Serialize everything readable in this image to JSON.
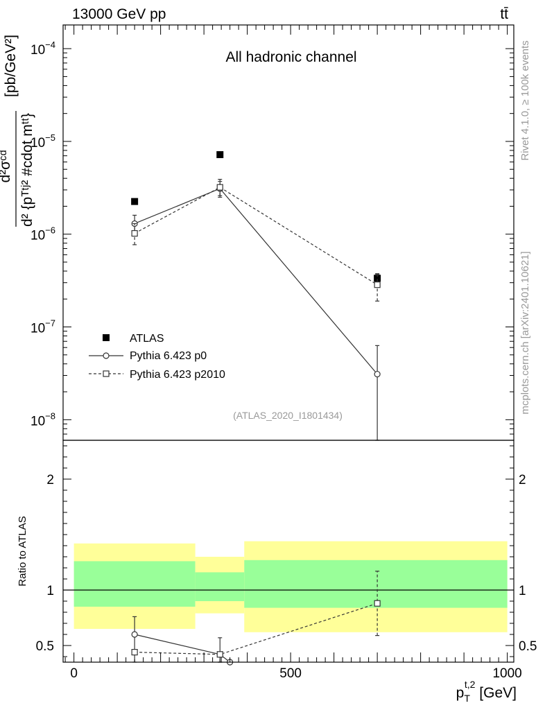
{
  "header": {
    "left": "13000 GeV pp",
    "right": "tt̄",
    "rivet": "Rivet 4.1.0, ≥ 100k events",
    "mcplots": "mcplots.cern.ch [arXiv:2401.10621]"
  },
  "chart_data": [
    {
      "type": "scatter",
      "panel": "main",
      "title": "All hadronic channel",
      "analysis": "(ATLAS_2020_I1801434)",
      "ylabel_num": "d²σᶜᵈ",
      "ylabel_den": "d² {pᵀᵗʲ² #cdot mᵗᵗ}",
      "ylabel_unit": "[pb/GeV²]",
      "yscale": "log",
      "ylim": [
        6e-09,
        0.00018
      ],
      "yticks": [
        {
          "value": 1e-08,
          "mant": "10",
          "exp": "−8"
        },
        {
          "value": 1e-07,
          "mant": "10",
          "exp": "−7"
        },
        {
          "value": 1e-06,
          "mant": "10",
          "exp": "−6"
        },
        {
          "value": 1e-05,
          "mant": "10",
          "exp": "−5"
        },
        {
          "value": 0.0001,
          "mant": "10",
          "exp": "−4"
        }
      ],
      "xlim": [
        -25,
        1015
      ],
      "series": [
        {
          "name": "ATLAS",
          "style": "filled-square",
          "x": [
            140,
            337,
            700
          ],
          "y": [
            2.25e-06,
            7.2e-06,
            3.35e-07
          ],
          "yerr_lo": [
            null,
            null,
            3e-07
          ],
          "yerr_hi": [
            null,
            null,
            3.75e-07
          ]
        },
        {
          "name": "Pythia 6.423 p0",
          "style": "open-circle-solid",
          "x": [
            140,
            337,
            700
          ],
          "y": [
            1.3e-06,
            3.1e-06,
            3.1e-08
          ],
          "yerr_lo": [
            1.05e-06,
            2.5e-06,
            6e-09
          ],
          "yerr_hi": [
            1.6e-06,
            3.7e-06,
            6.3e-08
          ]
        },
        {
          "name": "Pythia 6.423 p2010",
          "style": "open-square-dashed",
          "x": [
            140,
            337,
            700
          ],
          "y": [
            1.02e-06,
            3.2e-06,
            2.85e-07
          ],
          "yerr_lo": [
            7.7e-07,
            2.6e-06,
            1.9e-07
          ],
          "yerr_hi": [
            1.3e-06,
            3.9e-06,
            3.7e-07
          ]
        }
      ]
    },
    {
      "type": "scatter",
      "panel": "ratio",
      "ylabel": "Ratio to ATLAS",
      "xlabel": "pᵀᵗʲ² [GeV]",
      "xlabel_main": "p",
      "xlabel_sub": "T",
      "xlabel_sup": "t,2",
      "xlabel_unit": " [GeV]",
      "xlim": [
        -25,
        1015
      ],
      "ylim": [
        0.35,
        2.35
      ],
      "xticks": [
        {
          "value": 0,
          "label": "0"
        },
        {
          "value": 500,
          "label": "500"
        },
        {
          "value": 1000,
          "label": "1000"
        }
      ],
      "yticks": [
        {
          "value": 0.5,
          "label": "0.5"
        },
        {
          "value": 1,
          "label": "1"
        },
        {
          "value": 2,
          "label": "2"
        }
      ],
      "bands": [
        {
          "x0": 0,
          "x1": 280,
          "yellow": [
            0.65,
            1.42
          ],
          "green": [
            0.85,
            1.26
          ]
        },
        {
          "x0": 280,
          "x1": 393,
          "yellow": [
            0.79,
            1.3
          ],
          "green": [
            0.9,
            1.16
          ]
        },
        {
          "x0": 393,
          "x1": 1000,
          "yellow": [
            0.62,
            1.44
          ],
          "green": [
            0.84,
            1.27
          ]
        }
      ],
      "series": [
        {
          "name": "Pythia 6.423 p0",
          "style": "open-circle-solid",
          "x": [
            140,
            337,
            360
          ],
          "y": [
            0.6,
            0.42,
            0.35
          ],
          "yerr_lo": [
            0.45,
            0.35,
            null
          ],
          "yerr_hi": [
            0.76,
            0.57,
            null
          ]
        },
        {
          "name": "Pythia 6.423 p2010",
          "style": "open-square-dashed",
          "x": [
            140,
            337,
            700
          ],
          "y": [
            0.44,
            0.42,
            0.88
          ],
          "yerr_lo": [
            0.35,
            0.35,
            0.59
          ],
          "yerr_hi": [
            0.44,
            0.42,
            1.17
          ]
        }
      ]
    }
  ]
}
